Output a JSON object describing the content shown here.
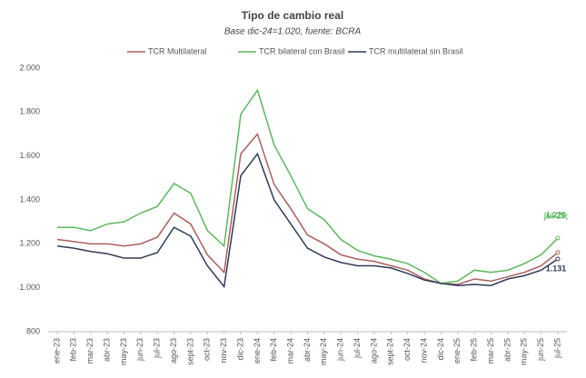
{
  "chart_data": {
    "type": "line",
    "title": "Tipo de cambio real",
    "subtitle": "Base dic-24=1.020, fuente: BCRA",
    "categories": [
      "ene-23",
      "feb-23",
      "mar-23",
      "abr-23",
      "may-23",
      "jun-23",
      "jul-23",
      "ago-23",
      "sept-23",
      "oct-23",
      "nov-23",
      "dic-23",
      "ene-24",
      "feb-24",
      "mar-24",
      "abr-24",
      "may-24",
      "jun-24",
      "jul-24",
      "ago-24",
      "sept-24",
      "oct-24",
      "nov-24",
      "dic-24",
      "ene-25",
      "feb-25",
      "mar-25",
      "abr-25",
      "may-25",
      "jun-25",
      "jul-25"
    ],
    "series": [
      {
        "name": "TCR Multilateral",
        "color": "#a9605e",
        "values": [
          1220,
          1210,
          1200,
          1200,
          1190,
          1200,
          1230,
          1340,
          1290,
          1150,
          1070,
          1610,
          1700,
          1470,
          1360,
          1240,
          1200,
          1150,
          1130,
          1120,
          1100,
          1080,
          1040,
          1020,
          1015,
          1040,
          1030,
          1050,
          1070,
          1100,
          1160
        ]
      },
      {
        "name": "TCR bilateral con Brasil",
        "color": "#5cb85c",
        "values": [
          1275,
          1275,
          1260,
          1290,
          1300,
          1340,
          1370,
          1475,
          1430,
          1260,
          1190,
          1790,
          1900,
          1650,
          1510,
          1360,
          1310,
          1220,
          1170,
          1145,
          1130,
          1110,
          1070,
          1020,
          1030,
          1080,
          1070,
          1080,
          1110,
          1150,
          1226
        ],
        "value_labels": [
          null,
          null,
          null,
          null,
          null,
          null,
          null,
          null,
          null,
          null,
          null,
          null,
          null,
          null,
          null,
          null,
          null,
          null,
          null,
          null,
          null,
          null,
          null,
          null,
          null,
          null,
          null,
          null,
          null,
          null,
          "1.226"
        ]
      },
      {
        "name": "TCR multilateral sin Brasil",
        "color": "#2f3a56",
        "values": [
          1190,
          1180,
          1165,
          1155,
          1135,
          1135,
          1160,
          1275,
          1235,
          1100,
          1005,
          1510,
          1610,
          1400,
          1290,
          1180,
          1140,
          1115,
          1100,
          1100,
          1090,
          1065,
          1035,
          1020,
          1010,
          1015,
          1010,
          1040,
          1055,
          1080,
          1131
        ],
        "value_labels": [
          null,
          null,
          null,
          null,
          null,
          null,
          null,
          null,
          null,
          null,
          null,
          null,
          null,
          null,
          null,
          null,
          null,
          null,
          null,
          null,
          null,
          null,
          null,
          null,
          null,
          null,
          null,
          null,
          null,
          null,
          "1.131"
        ]
      }
    ],
    "annotations": [
      {
        "text": "jul-25;",
        "color": "#5cb85c"
      }
    ],
    "ylim": [
      800,
      2000
    ],
    "yticks": [
      800,
      {
        "value": 1000,
        "label": "1.000"
      },
      {
        "value": 1200,
        "label": "1.200"
      },
      {
        "value": 1400,
        "label": "1.400"
      },
      {
        "value": 1600,
        "label": "1.600"
      },
      {
        "value": 1800,
        "label": "1.800"
      },
      {
        "value": 2000,
        "label": "2.000"
      }
    ],
    "grid": false,
    "legend": "top"
  }
}
